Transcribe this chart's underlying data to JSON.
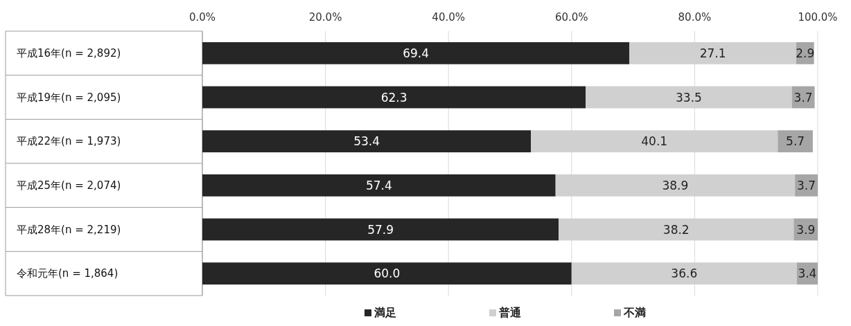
{
  "chart_data": {
    "type": "bar",
    "orientation": "horizontal",
    "stacked": true,
    "categories": [
      "平成16年(n = 2,892)",
      "平成19年(n = 2,095)",
      "平成22年(n = 1,973)",
      "平成25年(n = 2,074)",
      "平成28年(n = 2,219)",
      "令和元年(n = 1,864)"
    ],
    "series": [
      {
        "name": "満足",
        "color": "#262626",
        "values": [
          69.4,
          62.3,
          53.4,
          57.4,
          57.9,
          60.0
        ],
        "value_labels": [
          "69.4",
          "62.3",
          "53.4",
          "57.4",
          "57.9",
          "60.0"
        ]
      },
      {
        "name": "普通",
        "color": "#d0d0d0",
        "values": [
          27.1,
          33.5,
          40.1,
          38.9,
          38.2,
          36.6
        ],
        "value_labels": [
          "27.1",
          "33.5",
          "40.1",
          "38.9",
          "38.2",
          "36.6"
        ]
      },
      {
        "name": "不満",
        "color": "#a6a6a6",
        "values": [
          2.9,
          3.7,
          5.7,
          3.7,
          3.9,
          3.4
        ],
        "value_labels": [
          "2.9",
          "3.7",
          "5.7",
          "3.7",
          "3.9",
          "3.4"
        ]
      }
    ],
    "xlim": [
      0,
      100
    ],
    "xticks": [
      {
        "value": 0,
        "label": "0.0%"
      },
      {
        "value": 20,
        "label": "20.0%"
      },
      {
        "value": 40,
        "label": "40.0%"
      },
      {
        "value": 60,
        "label": "60.0%"
      },
      {
        "value": 80,
        "label": "80.0%"
      },
      {
        "value": 100,
        "label": "100.0%"
      }
    ],
    "grid": "x",
    "legend": "bottom"
  }
}
